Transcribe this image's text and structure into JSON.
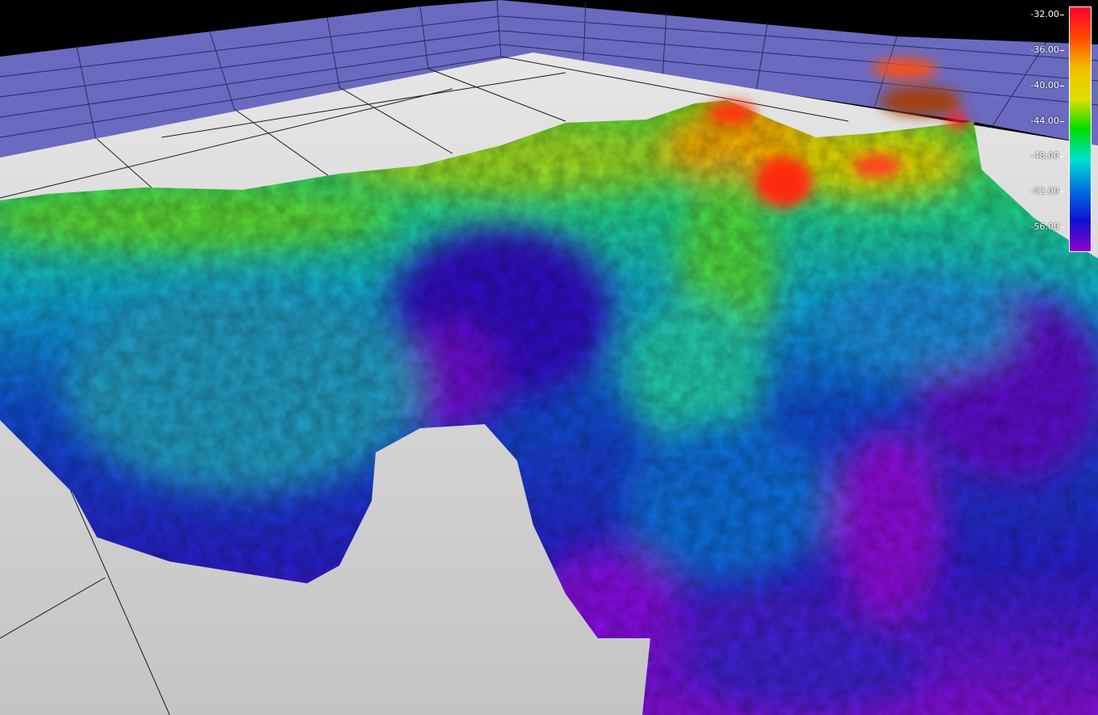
{
  "viewer": {
    "type": "3d-bathymetry-surface",
    "colormap": [
      "#ff0033",
      "#ff4a00",
      "#f0c000",
      "#e0e000",
      "#00dd00",
      "#00e0d0",
      "#0070e0",
      "#1010d0",
      "#9000d0"
    ],
    "colors": {
      "background": "#000000",
      "wall": "#6a6ac0",
      "floor": "#c8c8c8",
      "grid": "#222222"
    }
  },
  "legend": {
    "name": "depth-color-scale",
    "range": [
      -58.8,
      -31.1
    ],
    "ticks": [
      "-32.00",
      "-36.00",
      "-40.00",
      "-44.00",
      "-48.00",
      "-52.00",
      "-56.00"
    ],
    "tick_values": [
      -32,
      -36,
      -40,
      -44,
      -48,
      -52,
      -56
    ]
  }
}
